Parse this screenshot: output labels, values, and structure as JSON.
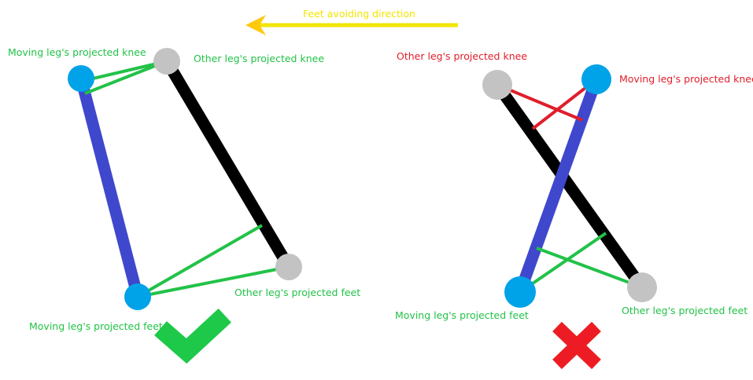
{
  "header": {
    "direction_label": "Feet avoiding direction"
  },
  "left_panel": {
    "moving_knee_label": "Moving leg's projected knee",
    "other_knee_label": "Other leg's projected knee",
    "moving_feet_label": "Moving leg's projected feet",
    "other_feet_label": "Other leg's projected feet",
    "verdict": "check-mark-icon"
  },
  "right_panel": {
    "other_knee_label": "Other leg's projected knee",
    "moving_knee_label": "Moving leg's projected knee",
    "moving_feet_label": "Moving leg's projected feet",
    "other_feet_label": "Other leg's projected feet",
    "verdict": "cross-mark-icon"
  },
  "colors": {
    "moving_leg": "#3f48cc",
    "other_leg": "#000000",
    "moving_joint": "#00a2e8",
    "other_joint": "#c3c3c3",
    "good_line": "#22c248",
    "bad_line": "#e01e2b",
    "arrow": "#f2e600",
    "arrow_head": "#ffc90e",
    "check": "#1ec94a",
    "cross": "#ed1c24"
  }
}
